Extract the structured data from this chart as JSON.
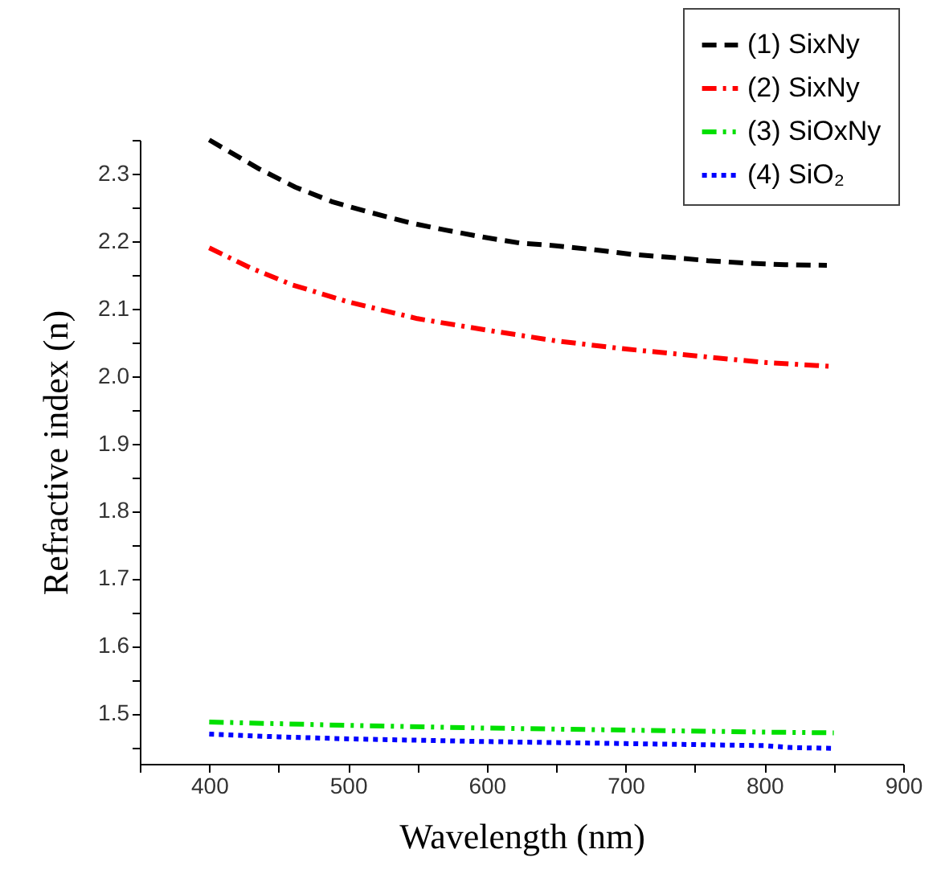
{
  "chart_data": {
    "type": "line",
    "xlabel": "Wavelength (nm)",
    "ylabel": "Refractive index (n)",
    "xlim": [
      350,
      900
    ],
    "ylim": [
      1.425,
      2.35
    ],
    "xticks": [
      {
        "value": 350,
        "label": null
      },
      400,
      {
        "value": 450,
        "label": null
      },
      500,
      {
        "value": 550,
        "label": null
      },
      600,
      {
        "value": 650,
        "label": null
      },
      700,
      {
        "value": 750,
        "label": null
      },
      800,
      {
        "value": 850,
        "label": null
      },
      900
    ],
    "yticks": [
      {
        "value": 1.45,
        "label": null
      },
      1.5,
      {
        "value": 1.55,
        "label": null
      },
      1.6,
      {
        "value": 1.65,
        "label": null
      },
      1.7,
      {
        "value": 1.75,
        "label": null
      },
      1.8,
      {
        "value": 1.85,
        "label": null
      },
      1.9,
      {
        "value": 1.95,
        "label": null
      },
      {
        "value": 2.0,
        "label": "2.0"
      },
      {
        "value": 2.05,
        "label": null
      },
      2.1,
      {
        "value": 2.15,
        "label": null
      },
      2.2,
      {
        "value": 2.25,
        "label": null
      },
      2.3,
      {
        "value": 2.35,
        "label": null
      }
    ],
    "grid": false,
    "legend": "top right",
    "marker": "none",
    "series": [
      {
        "name": "(1) SixNy",
        "color": "#000000",
        "line_style": "dashed",
        "x": [
          400,
          436,
          462,
          489,
          515,
          545,
          571,
          597,
          624,
          650,
          678,
          706,
          732,
          759,
          789,
          815,
          845
        ],
        "values": [
          2.35,
          2.307,
          2.28,
          2.258,
          2.243,
          2.227,
          2.216,
          2.206,
          2.197,
          2.193,
          2.187,
          2.18,
          2.176,
          2.171,
          2.167,
          2.165,
          2.164
        ]
      },
      {
        "name": "(2) SixNy",
        "color": "#ff0000",
        "line_style": "dashdot",
        "x": [
          400,
          430,
          460,
          500,
          550,
          600,
          650,
          700,
          750,
          800,
          850
        ],
        "values": [
          2.19,
          2.16,
          2.135,
          2.11,
          2.085,
          2.068,
          2.052,
          2.04,
          2.03,
          2.02,
          2.014
        ]
      },
      {
        "name": "(3) SiOxNy",
        "color": "#00e000",
        "line_style": "dashdotdot",
        "x": [
          400,
          500,
          600,
          700,
          800,
          850
        ],
        "values": [
          1.487,
          1.482,
          1.478,
          1.475,
          1.472,
          1.471
        ]
      },
      {
        "name": "(4) SiO₂",
        "color": "#0000ff",
        "line_style": "dotted",
        "x": [
          400,
          450,
          500,
          600,
          700,
          800,
          820,
          850
        ],
        "values": [
          1.469,
          1.465,
          1.462,
          1.458,
          1.455,
          1.452,
          1.449,
          1.448
        ]
      }
    ]
  }
}
